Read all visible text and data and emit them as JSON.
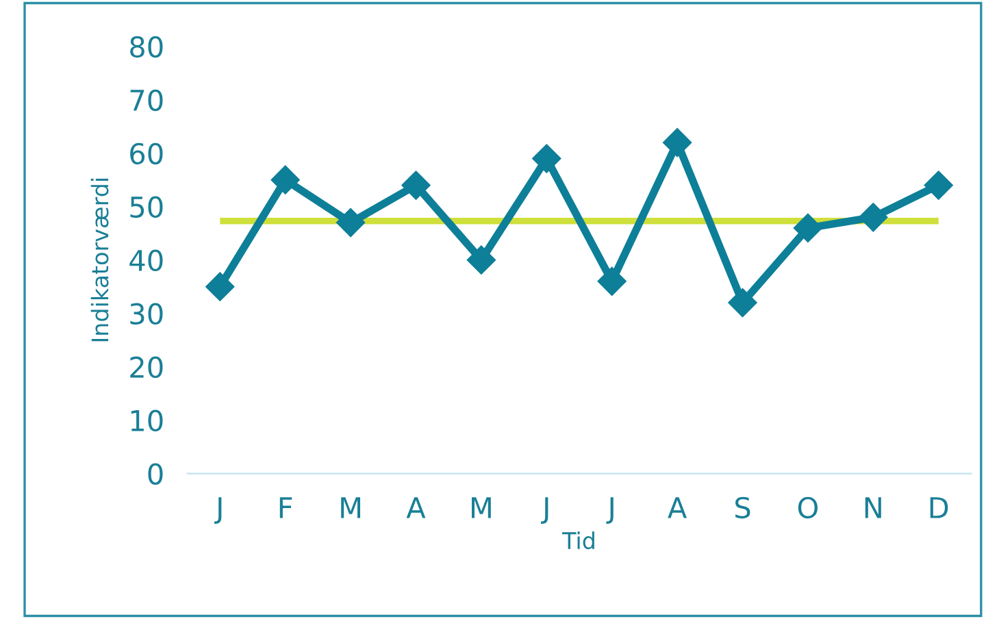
{
  "chart_data": {
    "type": "line",
    "xlabel": "Tid",
    "ylabel": "Indikatorværdi",
    "categories": [
      "J",
      "F",
      "M",
      "A",
      "M",
      "J",
      "J",
      "A",
      "S",
      "O",
      "N",
      "D"
    ],
    "series": [
      {
        "color": "#0e7f98",
        "values": [
          35,
          55,
          47,
          54,
          40,
          59,
          36,
          62,
          32,
          46,
          48,
          54
        ]
      }
    ],
    "ref_lines": [
      {
        "axis": "y",
        "value": 47.3,
        "label": null,
        "color": "#cfdf3c"
      }
    ],
    "marker": "diamond",
    "line_style": "solid",
    "grid": false,
    "legend": false,
    "ylim": [
      0,
      80
    ],
    "yticks": [
      0,
      10,
      20,
      30,
      40,
      50,
      60,
      70,
      80
    ]
  }
}
